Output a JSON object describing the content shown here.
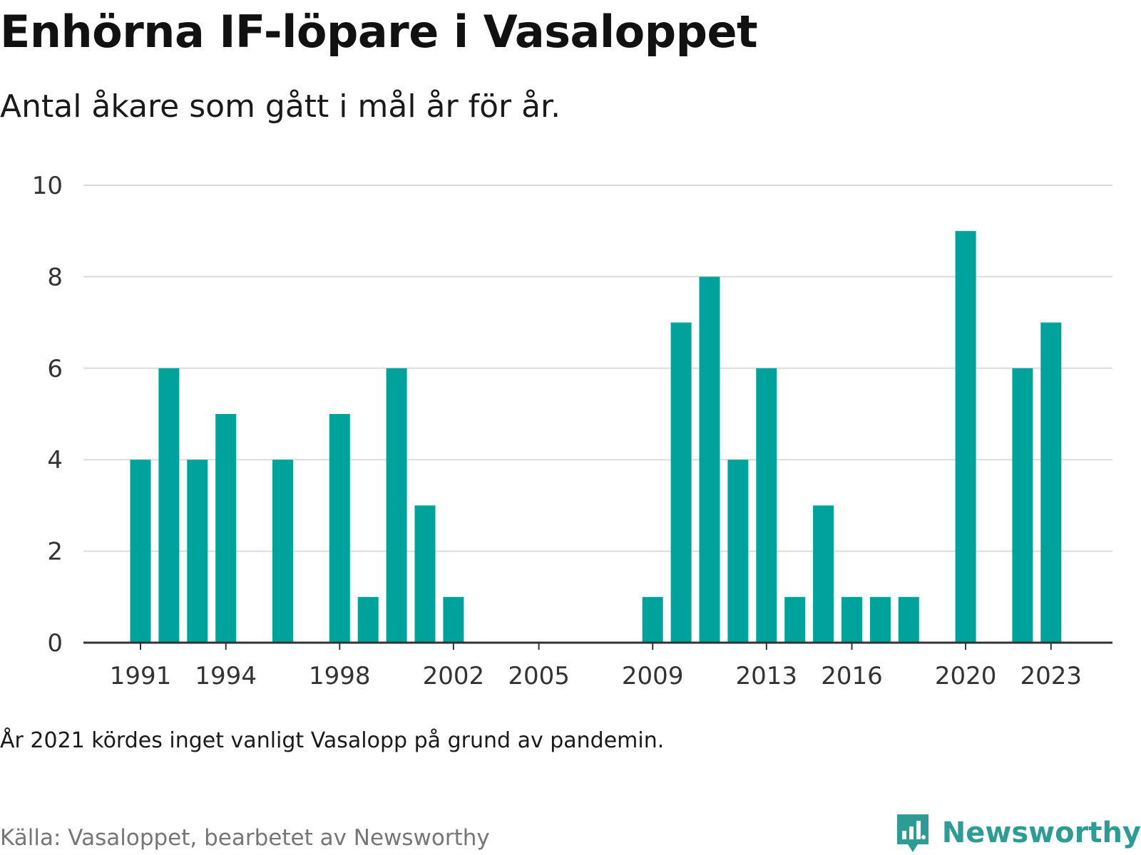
{
  "title": "Enhörna IF-löpare i Vasaloppet",
  "subtitle": "Antal åkare som gått i mål år för år.",
  "note": "År 2021 kördes inget vanligt Vasalopp på grund av pandemin.",
  "source": "Källa: Vasaloppet, bearbetet av Newsworthy",
  "logo": {
    "text": "Newsworthy",
    "icon": "bar-chart-speech-bubble-icon"
  },
  "colors": {
    "bar": "#00a39b",
    "grid": "#dcdcdc",
    "axis": "#333333",
    "brand": "#2e9b94"
  },
  "chart_data": {
    "type": "bar",
    "title": "Enhörna IF-löpare i Vasaloppet",
    "subtitle": "Antal åkare som gått i mål år för år.",
    "xlabel": "",
    "ylabel": "",
    "ylim": [
      0,
      10
    ],
    "y_ticks": [
      0,
      2,
      4,
      6,
      8,
      10
    ],
    "x_ticks": [
      1991,
      1994,
      1998,
      2002,
      2005,
      2009,
      2013,
      2016,
      2020,
      2023
    ],
    "grid": true,
    "x": [
      1991,
      1992,
      1993,
      1994,
      1995,
      1996,
      1997,
      1998,
      1999,
      2000,
      2001,
      2002,
      2003,
      2004,
      2005,
      2006,
      2007,
      2008,
      2009,
      2010,
      2011,
      2012,
      2013,
      2014,
      2015,
      2016,
      2017,
      2018,
      2019,
      2020,
      2021,
      2022,
      2023
    ],
    "values": [
      4,
      6,
      4,
      5,
      0,
      4,
      0,
      5,
      1,
      6,
      3,
      1,
      0,
      0,
      0,
      0,
      0,
      0,
      1,
      7,
      8,
      4,
      6,
      1,
      3,
      1,
      1,
      1,
      0,
      9,
      0,
      6,
      7
    ]
  }
}
